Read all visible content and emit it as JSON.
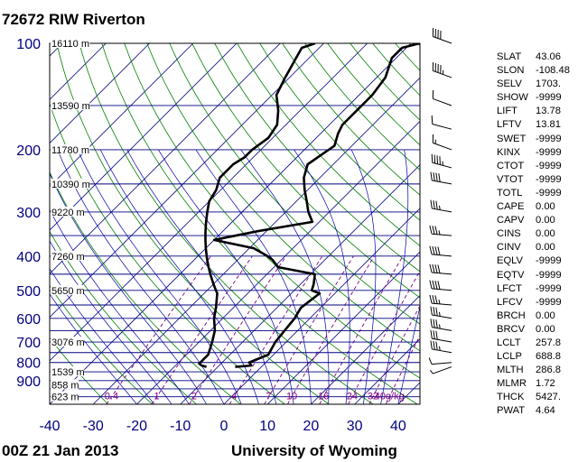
{
  "header": {
    "station": "72672 RIW Riverton"
  },
  "footer": {
    "time": "00Z 21 Jan 2013",
    "source": "University of Wyoming"
  },
  "colors": {
    "frame": "#000000",
    "isobar": "#000080",
    "isotherm": "#000080",
    "dry_adiabat": "#008000",
    "moist_adiabat": "#0000aa",
    "mixing_ratio": "#800080",
    "temp_line": "#000000",
    "pressure_label": "#000080",
    "mixing_label": "#800080"
  },
  "chart_data": {
    "type": "line",
    "title": "72672 RIW Riverton",
    "xlim": [
      -40,
      45
    ],
    "x_ticks": [
      "-40",
      "-30",
      "-20",
      "-10",
      "0",
      "10",
      "20",
      "30",
      "40"
    ],
    "y_scale": "log-pressure",
    "ylim": [
      1050,
      100
    ],
    "pressure_ticks": [
      "100",
      "200",
      "300",
      "400",
      "500",
      "600",
      "700",
      "800",
      "900"
    ],
    "height_labels": [
      {
        "p": 100,
        "label": "16110 m"
      },
      {
        "p": 150,
        "label": "13590 m"
      },
      {
        "p": 200,
        "label": "11780 m"
      },
      {
        "p": 250,
        "label": "10390 m"
      },
      {
        "p": 300,
        "label": "9220 m"
      },
      {
        "p": 400,
        "label": "7260 m"
      },
      {
        "p": 500,
        "label": "5650 m"
      },
      {
        "p": 700,
        "label": "3076 m"
      },
      {
        "p": 850,
        "label": "1539 m"
      },
      {
        "p": 925,
        "label": "858 m"
      },
      {
        "p": 1000,
        "label": "623 m"
      }
    ],
    "mixing_ratio_labels": [
      "0.4",
      "1",
      "2",
      "4",
      "7",
      "10",
      "16",
      "24",
      "32",
      "40g/kg"
    ],
    "series": [
      {
        "kind": "temperature",
        "points": [
          [
            823,
            -6
          ],
          [
            816,
            -2.6
          ],
          [
            806,
            -3.3
          ],
          [
            800,
            -3.8
          ],
          [
            760,
            -1.2
          ],
          [
            700,
            -2.5
          ],
          [
            650,
            -3
          ],
          [
            600,
            -3.5
          ],
          [
            560,
            -4.5
          ],
          [
            510,
            -3.5
          ],
          [
            500,
            -6
          ],
          [
            480,
            -7
          ],
          [
            450,
            -9
          ],
          [
            430,
            -19
          ],
          [
            410,
            -22
          ],
          [
            400,
            -24
          ],
          [
            380,
            -29
          ],
          [
            360,
            -40
          ],
          [
            340,
            -32
          ],
          [
            320,
            -21.6
          ],
          [
            300,
            -24.8
          ],
          [
            280,
            -27.6
          ],
          [
            260,
            -30.7
          ],
          [
            240,
            -33.7
          ],
          [
            220,
            -35.9
          ],
          [
            205,
            -34.8
          ],
          [
            195,
            -34
          ],
          [
            180,
            -36
          ],
          [
            170,
            -37
          ],
          [
            155,
            -37
          ],
          [
            140,
            -37
          ],
          [
            125,
            -38
          ],
          [
            110,
            -41
          ],
          [
            103,
            -41
          ],
          [
            100,
            -38
          ]
        ]
      },
      {
        "kind": "dewpoint",
        "points": [
          [
            823,
            -12.6
          ],
          [
            816,
            -14
          ],
          [
            806,
            -15
          ],
          [
            800,
            -15
          ],
          [
            760,
            -15
          ],
          [
            700,
            -17
          ],
          [
            650,
            -19
          ],
          [
            600,
            -22
          ],
          [
            560,
            -24
          ],
          [
            510,
            -27
          ],
          [
            500,
            -28
          ],
          [
            480,
            -30
          ],
          [
            450,
            -33
          ],
          [
            430,
            -35
          ],
          [
            410,
            -37
          ],
          [
            400,
            -38
          ],
          [
            380,
            -40
          ],
          [
            360,
            -42
          ],
          [
            340,
            -44
          ],
          [
            320,
            -46
          ],
          [
            300,
            -48
          ],
          [
            280,
            -50
          ],
          [
            260,
            -51
          ],
          [
            240,
            -53
          ],
          [
            220,
            -53
          ],
          [
            210,
            -52
          ],
          [
            200,
            -52
          ],
          [
            185,
            -51
          ],
          [
            170,
            -52
          ],
          [
            155,
            -55
          ],
          [
            140,
            -59
          ],
          [
            125,
            -61
          ],
          [
            110,
            -63
          ],
          [
            103,
            -64
          ],
          [
            100,
            -62
          ]
        ]
      }
    ]
  },
  "winds": {
    "levels": [
      {
        "p": 100,
        "dir": 290,
        "kt": 40
      },
      {
        "p": 125,
        "dir": 290,
        "kt": 45
      },
      {
        "p": 150,
        "dir": 290,
        "kt": 50
      },
      {
        "p": 175,
        "dir": 285,
        "kt": 50
      },
      {
        "p": 200,
        "dir": 290,
        "kt": 55
      },
      {
        "p": 225,
        "dir": 285,
        "kt": 45
      },
      {
        "p": 250,
        "dir": 280,
        "kt": 40
      },
      {
        "p": 300,
        "dir": 280,
        "kt": 35
      },
      {
        "p": 350,
        "dir": 275,
        "kt": 35
      },
      {
        "p": 400,
        "dir": 275,
        "kt": 40
      },
      {
        "p": 450,
        "dir": 275,
        "kt": 40
      },
      {
        "p": 500,
        "dir": 275,
        "kt": 40
      },
      {
        "p": 550,
        "dir": 275,
        "kt": 35
      },
      {
        "p": 600,
        "dir": 280,
        "kt": 35
      },
      {
        "p": 650,
        "dir": 280,
        "kt": 35
      },
      {
        "p": 700,
        "dir": 280,
        "kt": 30
      },
      {
        "p": 750,
        "dir": 280,
        "kt": 35
      },
      {
        "p": 800,
        "dir": 265,
        "kt": 10
      },
      {
        "p": 823,
        "dir": 250,
        "kt": 5
      }
    ]
  },
  "indices": [
    {
      "key": "SLAT",
      "value": "43.06"
    },
    {
      "key": "SLON",
      "value": "-108.48"
    },
    {
      "key": "SELV",
      "value": "1703."
    },
    {
      "key": "SHOW",
      "value": "-9999"
    },
    {
      "key": "LIFT",
      "value": "13.78"
    },
    {
      "key": "LFTV",
      "value": "13.81"
    },
    {
      "key": "SWET",
      "value": "-9999"
    },
    {
      "key": "KINX",
      "value": "-9999"
    },
    {
      "key": "CTOT",
      "value": "-9999"
    },
    {
      "key": "VTOT",
      "value": "-9999"
    },
    {
      "key": "TOTL",
      "value": "-9999"
    },
    {
      "key": "CAPE",
      "value": "0.00"
    },
    {
      "key": "CAPV",
      "value": "0.00"
    },
    {
      "key": "CINS",
      "value": "0.00"
    },
    {
      "key": "CINV",
      "value": "0.00"
    },
    {
      "key": "EQLV",
      "value": "-9999"
    },
    {
      "key": "EQTV",
      "value": "-9999"
    },
    {
      "key": "LFCT",
      "value": "-9999"
    },
    {
      "key": "LFCV",
      "value": "-9999"
    },
    {
      "key": "BRCH",
      "value": "0.00"
    },
    {
      "key": "BRCV",
      "value": "0.00"
    },
    {
      "key": "LCLT",
      "value": "257.8"
    },
    {
      "key": "LCLP",
      "value": "688.8"
    },
    {
      "key": "MLTH",
      "value": "286.8"
    },
    {
      "key": "MLMR",
      "value": "1.72"
    },
    {
      "key": "THCK",
      "value": "5427."
    },
    {
      "key": "PWAT",
      "value": "4.64"
    }
  ]
}
